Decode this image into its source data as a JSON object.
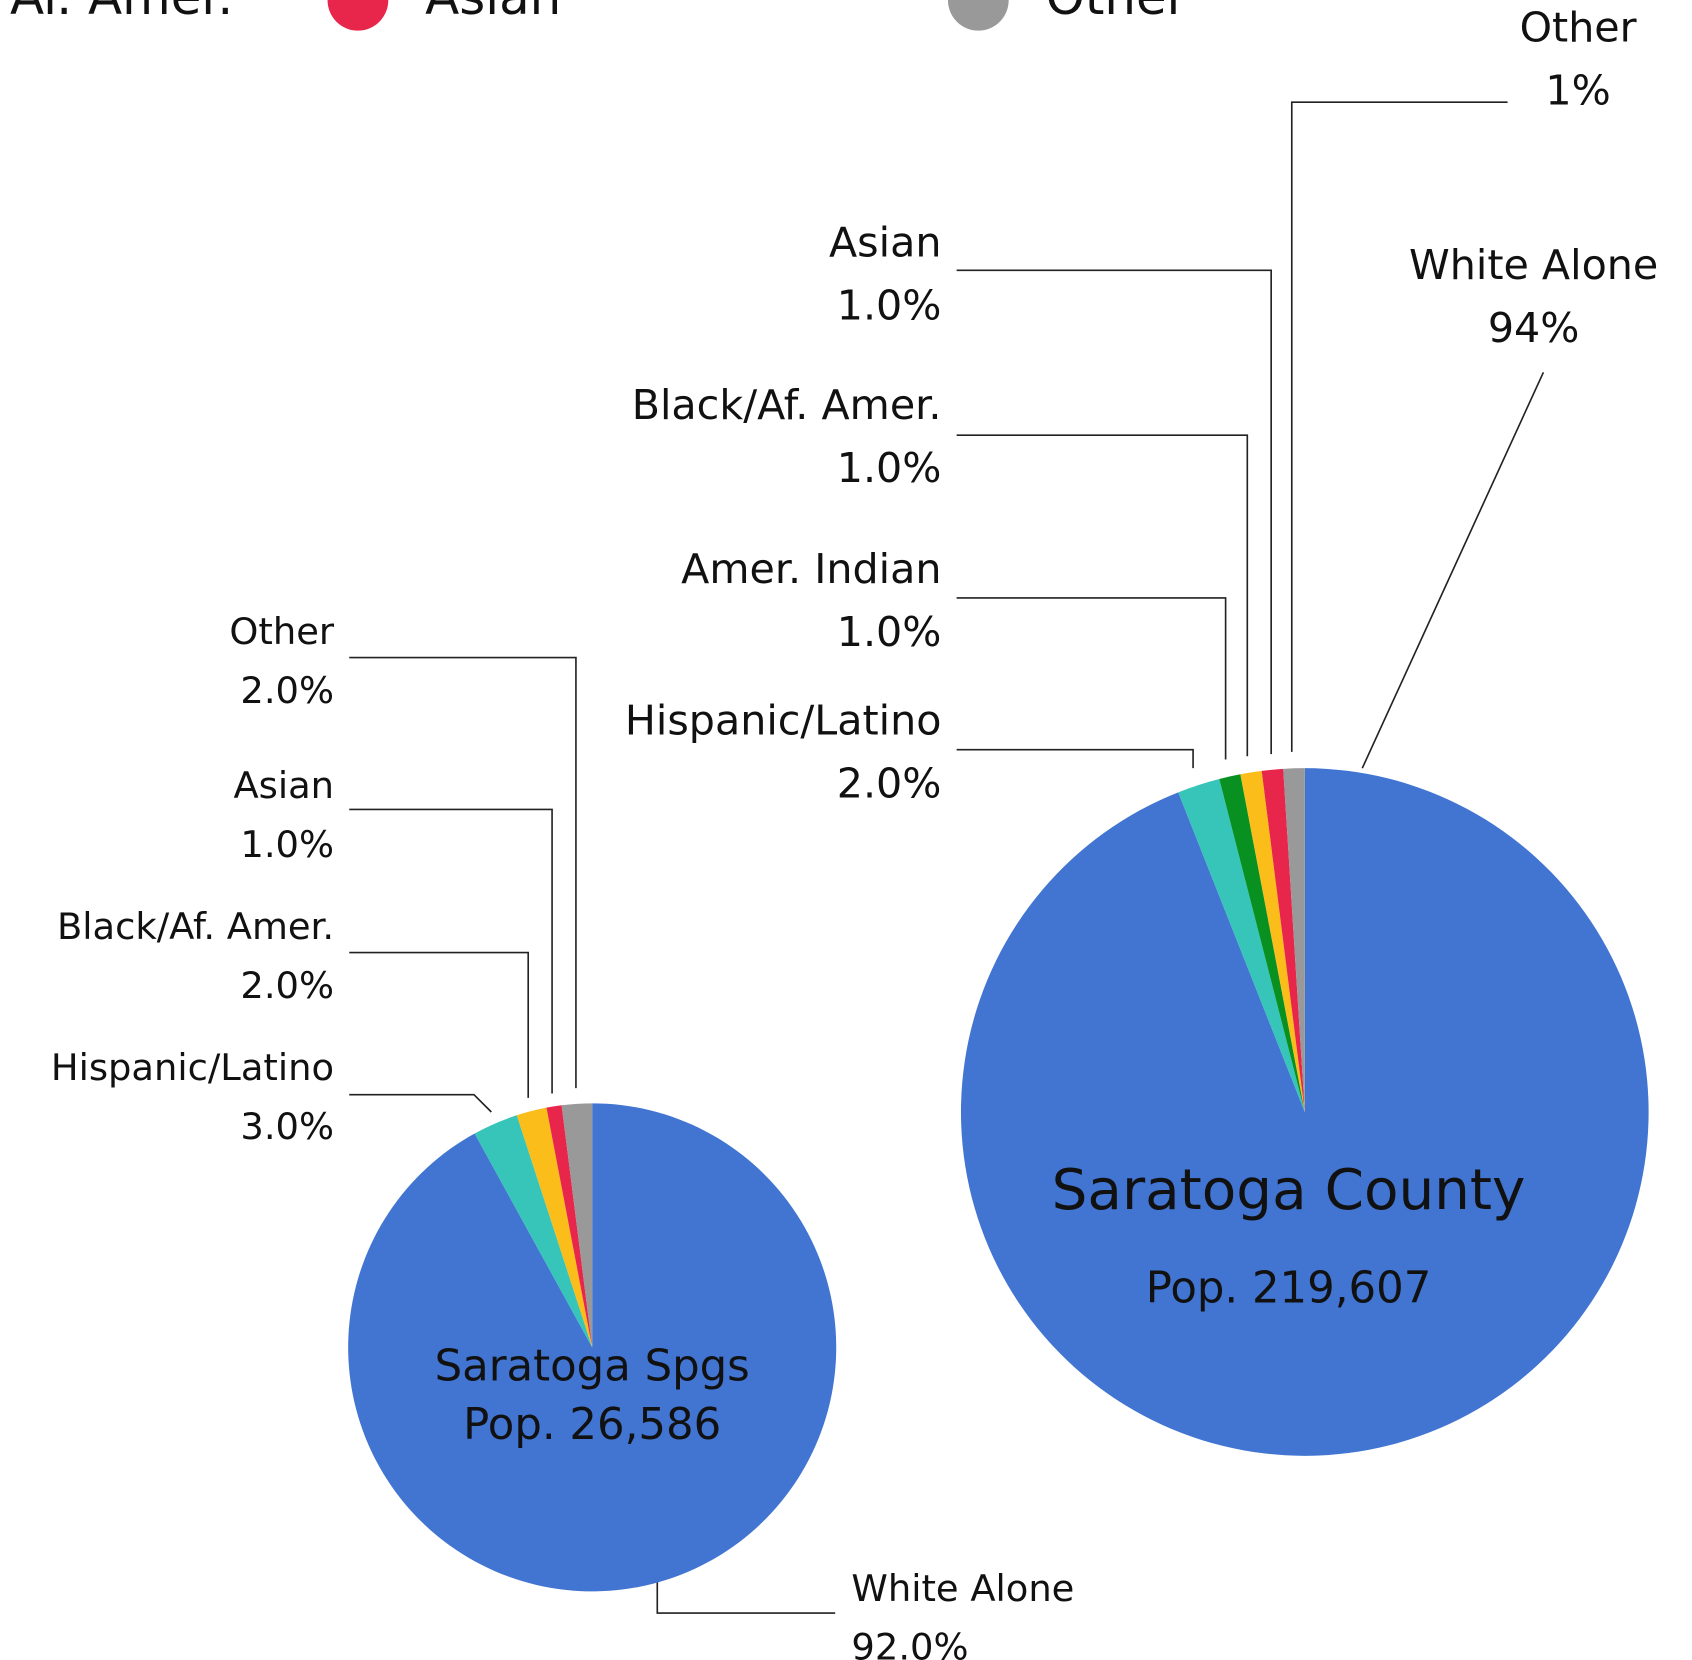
{
  "legend": {
    "entries": [
      {
        "label": "Af. Amer.",
        "color": "#fbbd1a"
      },
      {
        "label": "Asian",
        "color": "#e8254a"
      },
      {
        "label": "Other",
        "color": "#999999"
      }
    ]
  },
  "chart_data": [
    {
      "type": "pie",
      "title": "Saratoga Spgs",
      "subtitle": "Pop. 26,586",
      "categories": [
        "White Alone",
        "Hispanic/Latino",
        "Black/Af. Amer.",
        "Asian",
        "Other"
      ],
      "values": [
        92.0,
        3.0,
        2.0,
        1.0,
        2.0
      ],
      "value_labels": [
        "92.0%",
        "3.0%",
        "2.0%",
        "1.0%",
        "2.0%"
      ],
      "colors": [
        "#4175d1",
        "#36c5b8",
        "#fbbd1a",
        "#e8254a",
        "#999999"
      ]
    },
    {
      "type": "pie",
      "title": "Saratoga County",
      "subtitle": "Pop. 219,607",
      "categories": [
        "White Alone",
        "Hispanic/Latino",
        "Amer. Indian",
        "Black/Af. Amer.",
        "Asian",
        "Other"
      ],
      "values": [
        94,
        2.0,
        1.0,
        1.0,
        1.0,
        1
      ],
      "value_labels": [
        "94%",
        "2.0%",
        "1.0%",
        "1.0%",
        "1.0%",
        "1%"
      ],
      "colors": [
        "#4175d1",
        "#36c5b8",
        "#089020",
        "#fbbd1a",
        "#e8254a",
        "#999999"
      ]
    }
  ]
}
